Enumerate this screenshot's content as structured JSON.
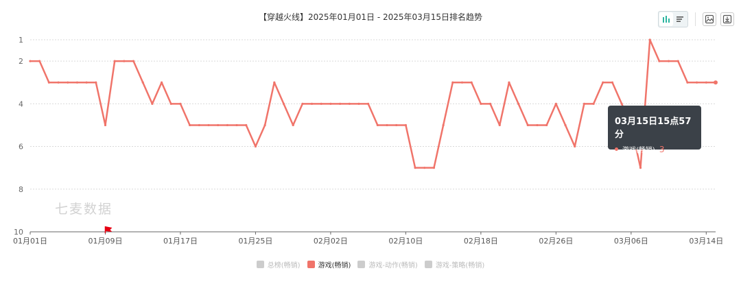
{
  "title": "【穿越火线】2025年01月01日 - 2025年03月15日排名趋势",
  "watermark": "七麦数据",
  "toolbar": {
    "icons": [
      "bar-chart-icon",
      "list-icon",
      "image-icon",
      "download-icon"
    ]
  },
  "tooltip": {
    "title": "03月15日15点57分",
    "series_name": "游戏(畅销)",
    "value": "3"
  },
  "legend": [
    {
      "name": "总榜(畅销)",
      "active": false
    },
    {
      "name": "游戏(畅销)",
      "active": true
    },
    {
      "name": "游戏-动作(畅销)",
      "active": false
    },
    {
      "name": "游戏-策略(畅销)",
      "active": false
    }
  ],
  "colors": {
    "series": "#f0746a",
    "axis": "#666666",
    "grid": "#d9d9d9",
    "flag": "#e60012"
  },
  "chart_data": {
    "type": "line",
    "ylim": [
      10,
      1
    ],
    "y_inverted": true,
    "y_ticks": [
      1,
      2,
      4,
      6,
      8,
      10
    ],
    "x_ticks": [
      "01月01日",
      "01月09日",
      "01月17日",
      "01月25日",
      "02月02日",
      "02月10日",
      "02月18日",
      "02月26日",
      "03月06日",
      "03月14日"
    ],
    "x_range_days": [
      0,
      73
    ],
    "grid": true,
    "legend_position": "bottom",
    "flag_marker_day": 8,
    "series": [
      {
        "name": "游戏(畅销)",
        "color": "#f0746a",
        "values": [
          2,
          2,
          3,
          3,
          3,
          3,
          3,
          3,
          5,
          2,
          2,
          2,
          3,
          4,
          3,
          4,
          4,
          5,
          5,
          5,
          5,
          5,
          5,
          5,
          6,
          5,
          3,
          4,
          5,
          4,
          4,
          4,
          4,
          4,
          4,
          4,
          4,
          5,
          5,
          5,
          5,
          7,
          7,
          7,
          5,
          3,
          3,
          3,
          4,
          4,
          5,
          3,
          4,
          5,
          5,
          5,
          4,
          5,
          6,
          4,
          4,
          3,
          3,
          4,
          5,
          7,
          1,
          2,
          2,
          2,
          3,
          3,
          3,
          3
        ]
      }
    ]
  }
}
